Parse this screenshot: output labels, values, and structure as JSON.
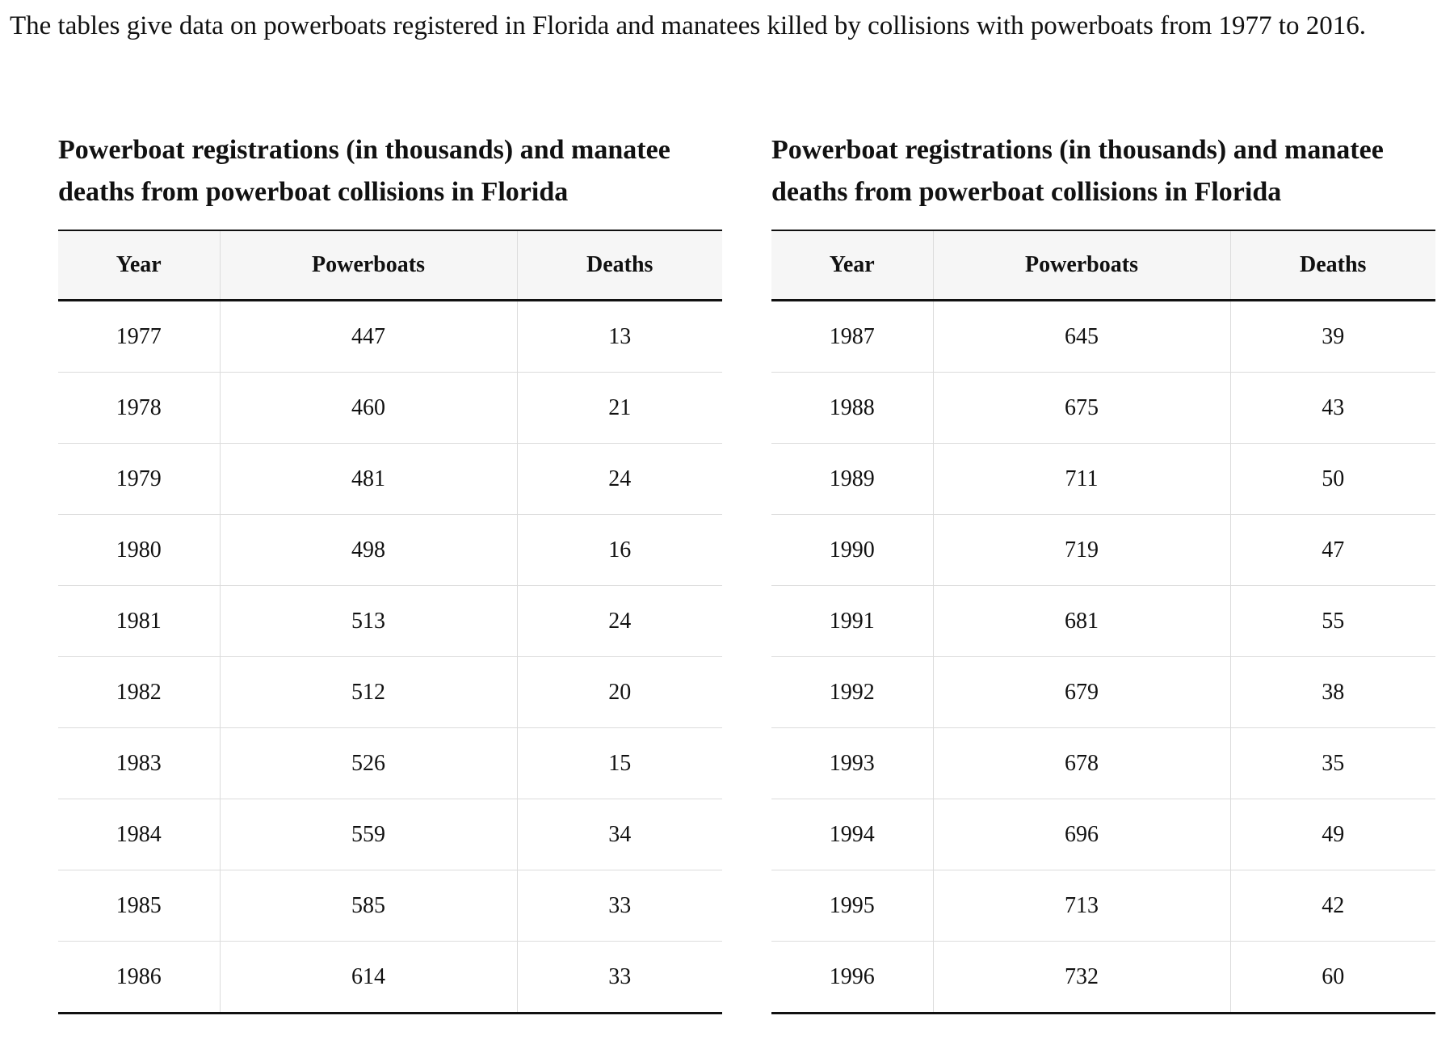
{
  "intro_text": "The tables give data on powerboats registered in Florida and manatees killed by collisions with powerboats from 1977 to 2016.",
  "tables": [
    {
      "caption": "Powerboat registrations (in thousands) and manatee deaths from powerboat collisions in Florida",
      "headers": [
        "Year",
        "Powerboats",
        "Deaths"
      ],
      "rows": [
        [
          "1977",
          "447",
          "13"
        ],
        [
          "1978",
          "460",
          "21"
        ],
        [
          "1979",
          "481",
          "24"
        ],
        [
          "1980",
          "498",
          "16"
        ],
        [
          "1981",
          "513",
          "24"
        ],
        [
          "1982",
          "512",
          "20"
        ],
        [
          "1983",
          "526",
          "15"
        ],
        [
          "1984",
          "559",
          "34"
        ],
        [
          "1985",
          "585",
          "33"
        ],
        [
          "1986",
          "614",
          "33"
        ]
      ]
    },
    {
      "caption": "Powerboat registrations (in thousands) and manatee deaths from powerboat collisions in Florida",
      "headers": [
        "Year",
        "Powerboats",
        "Deaths"
      ],
      "rows": [
        [
          "1987",
          "645",
          "39"
        ],
        [
          "1988",
          "675",
          "43"
        ],
        [
          "1989",
          "711",
          "50"
        ],
        [
          "1990",
          "719",
          "47"
        ],
        [
          "1991",
          "681",
          "55"
        ],
        [
          "1992",
          "679",
          "38"
        ],
        [
          "1993",
          "678",
          "35"
        ],
        [
          "1994",
          "696",
          "49"
        ],
        [
          "1995",
          "713",
          "42"
        ],
        [
          "1996",
          "732",
          "60"
        ]
      ]
    }
  ]
}
